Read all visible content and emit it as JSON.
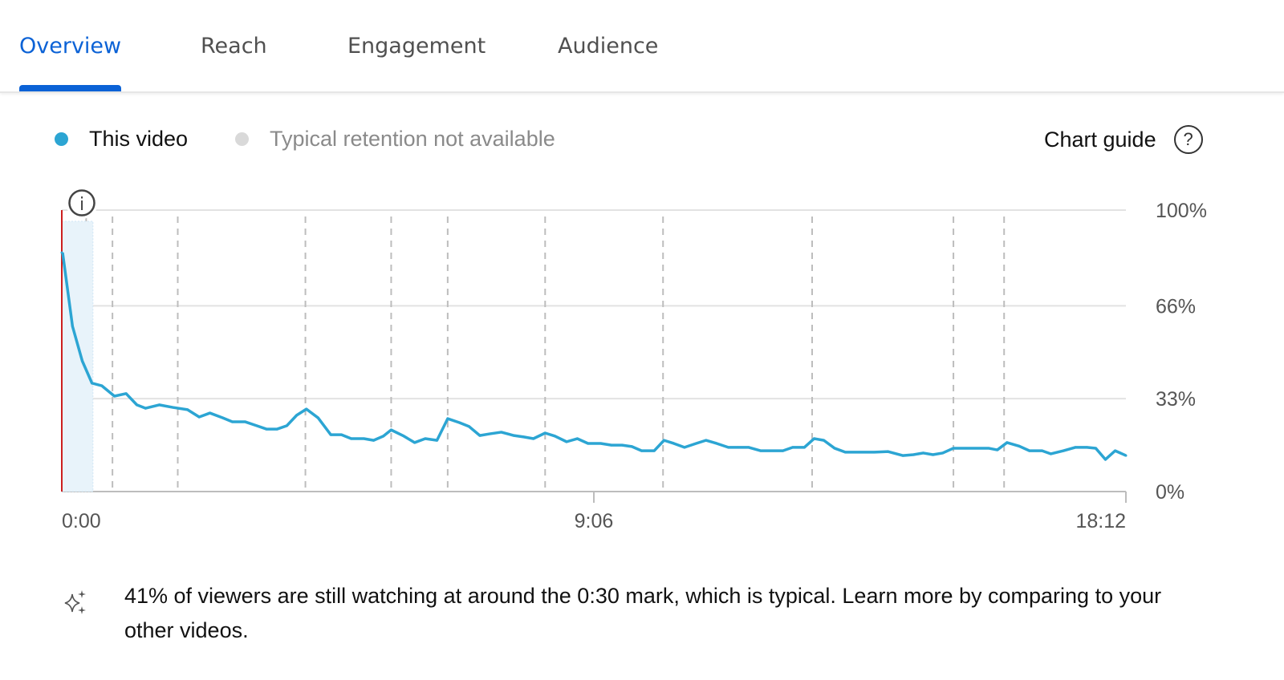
{
  "tabs": [
    {
      "label": "Overview",
      "active": true
    },
    {
      "label": "Reach",
      "active": false
    },
    {
      "label": "Engagement",
      "active": false
    },
    {
      "label": "Audience",
      "active": false
    }
  ],
  "legend": {
    "this_video": "This video",
    "typical": "Typical retention not available"
  },
  "chart_guide": {
    "label": "Chart guide",
    "icon": "help-circle-icon",
    "glyph": "?"
  },
  "info_icon": {
    "icon": "info-icon",
    "glyph": "i"
  },
  "colors": {
    "accent": "#0b62d6",
    "series": "#2ca5d3",
    "typical": "#d9d9d9",
    "start_line": "#cc1f1f",
    "highlight": "#e8f3fa"
  },
  "chart_data": {
    "type": "line",
    "x_ticks": [
      "0:00",
      "9:06",
      "18:12"
    ],
    "y_ticks": [
      "100%",
      "66%",
      "33%",
      "0%"
    ],
    "y_tick_values": [
      100,
      66,
      33,
      0
    ],
    "xlim": [
      "0:00",
      "18:12"
    ],
    "ylim": [
      0,
      100
    ],
    "grid": "horizontal",
    "legend_position": "top-left",
    "highlight_range": [
      "0:00",
      "0:32"
    ],
    "markers": [
      "0:25",
      "0:52",
      "1:59",
      "4:10",
      "5:38",
      "6:36",
      "8:16",
      "10:17",
      "12:50",
      "15:15",
      "16:07"
    ],
    "series": [
      {
        "name": "This video",
        "points": [
          [
            "0:00",
            84.9
          ],
          [
            "0:11",
            58.7
          ],
          [
            "0:21",
            46.4
          ],
          [
            "0:31",
            38.5
          ],
          [
            "0:41",
            37.6
          ],
          [
            "0:54",
            33.9
          ],
          [
            "1:06",
            34.8
          ],
          [
            "1:17",
            30.8
          ],
          [
            "1:26",
            29.6
          ],
          [
            "1:40",
            30.8
          ],
          [
            "1:54",
            29.9
          ],
          [
            "2:09",
            29.1
          ],
          [
            "2:21",
            26.5
          ],
          [
            "2:32",
            27.9
          ],
          [
            "2:45",
            26.2
          ],
          [
            "2:55",
            24.8
          ],
          [
            "3:08",
            24.8
          ],
          [
            "3:20",
            23.4
          ],
          [
            "3:30",
            22.2
          ],
          [
            "3:41",
            22.2
          ],
          [
            "3:51",
            23.4
          ],
          [
            "4:01",
            27.1
          ],
          [
            "4:11",
            29.3
          ],
          [
            "4:23",
            26.2
          ],
          [
            "4:36",
            20.2
          ],
          [
            "4:47",
            20.2
          ],
          [
            "4:57",
            18.8
          ],
          [
            "5:10",
            18.8
          ],
          [
            "5:20",
            18.2
          ],
          [
            "5:30",
            19.7
          ],
          [
            "5:38",
            21.9
          ],
          [
            "5:51",
            19.7
          ],
          [
            "6:02",
            17.4
          ],
          [
            "6:13",
            18.8
          ],
          [
            "6:25",
            18.2
          ],
          [
            "6:36",
            25.9
          ],
          [
            "6:48",
            24.5
          ],
          [
            "6:58",
            23.1
          ],
          [
            "7:09",
            19.9
          ],
          [
            "7:19",
            20.5
          ],
          [
            "7:31",
            21.1
          ],
          [
            "7:44",
            19.9
          ],
          [
            "7:54",
            19.4
          ],
          [
            "8:04",
            18.8
          ],
          [
            "8:16",
            20.8
          ],
          [
            "8:26",
            19.7
          ],
          [
            "8:38",
            17.7
          ],
          [
            "8:49",
            18.8
          ],
          [
            "9:00",
            17.1
          ],
          [
            "9:13",
            17.1
          ],
          [
            "9:24",
            16.5
          ],
          [
            "9:35",
            16.5
          ],
          [
            "9:45",
            16.0
          ],
          [
            "9:55",
            14.5
          ],
          [
            "10:08",
            14.5
          ],
          [
            "10:18",
            18.2
          ],
          [
            "10:28",
            17.1
          ],
          [
            "10:39",
            15.7
          ],
          [
            "10:51",
            17.1
          ],
          [
            "11:01",
            18.2
          ],
          [
            "11:12",
            17.1
          ],
          [
            "11:24",
            15.7
          ],
          [
            "11:34",
            15.7
          ],
          [
            "11:45",
            15.7
          ],
          [
            "11:57",
            14.5
          ],
          [
            "12:07",
            14.5
          ],
          [
            "12:20",
            14.5
          ],
          [
            "12:30",
            15.7
          ],
          [
            "12:42",
            15.7
          ],
          [
            "12:52",
            18.8
          ],
          [
            "13:02",
            18.2
          ],
          [
            "13:13",
            15.4
          ],
          [
            "13:24",
            14.0
          ],
          [
            "13:38",
            14.0
          ],
          [
            "13:54",
            14.0
          ],
          [
            "14:08",
            14.2
          ],
          [
            "14:23",
            12.8
          ],
          [
            "14:34",
            13.1
          ],
          [
            "14:44",
            13.7
          ],
          [
            "14:54",
            13.1
          ],
          [
            "15:04",
            13.7
          ],
          [
            "15:15",
            15.4
          ],
          [
            "15:27",
            15.4
          ],
          [
            "15:40",
            15.4
          ],
          [
            "15:51",
            15.4
          ],
          [
            "16:00",
            14.8
          ],
          [
            "16:10",
            17.4
          ],
          [
            "16:22",
            16.2
          ],
          [
            "16:33",
            14.5
          ],
          [
            "16:46",
            14.5
          ],
          [
            "16:55",
            13.4
          ],
          [
            "17:08",
            14.5
          ],
          [
            "17:20",
            15.7
          ],
          [
            "17:32",
            15.7
          ],
          [
            "17:41",
            15.4
          ],
          [
            "17:51",
            11.4
          ],
          [
            "18:01",
            14.5
          ],
          [
            "18:12",
            12.8
          ]
        ]
      }
    ]
  },
  "insight": {
    "icon": "sparkle-icon",
    "text": "41% of viewers are still watching at around the 0:30 mark, which is typical. Learn more by comparing to your other videos."
  }
}
